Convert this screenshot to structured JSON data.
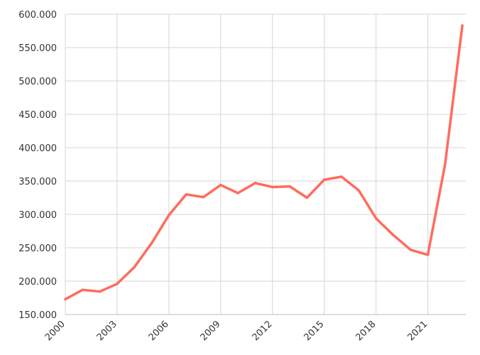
{
  "chart_data": {
    "type": "line",
    "title": "",
    "xlabel": "",
    "ylabel": "",
    "x": [
      2000,
      2001,
      2002,
      2003,
      2004,
      2005,
      2006,
      2007,
      2008,
      2009,
      2010,
      2011,
      2012,
      2013,
      2014,
      2015,
      2016,
      2017,
      2018,
      2019,
      2020,
      2021,
      2022,
      2023
    ],
    "series": [
      {
        "color": "#ff6b5e",
        "values": [
          173000,
          187000,
          184500,
          196000,
          221000,
          257000,
          299000,
          330000,
          326000,
          344000,
          332000,
          347000,
          341000,
          342000,
          325000,
          352000,
          356500,
          336000,
          294000,
          269000,
          247000,
          239500,
          375000,
          583000
        ]
      }
    ],
    "xlim": [
      2000,
      2023.2
    ],
    "ylim": [
      150000,
      600000
    ],
    "x_ticks": [
      2000,
      2003,
      2006,
      2009,
      2012,
      2015,
      2018,
      2021
    ],
    "x_tick_labels": [
      "2000",
      "2003",
      "2006",
      "2009",
      "2012",
      "2015",
      "2018",
      "2021"
    ],
    "y_ticks": [
      150000,
      200000,
      250000,
      300000,
      350000,
      400000,
      450000,
      500000,
      550000,
      600000
    ],
    "y_tick_labels": [
      "150.000",
      "200.000",
      "250.000",
      "300.000",
      "350.000",
      "400.000",
      "450.000",
      "500.000",
      "550.000",
      "600.000"
    ],
    "grid": true,
    "legend": "none"
  }
}
